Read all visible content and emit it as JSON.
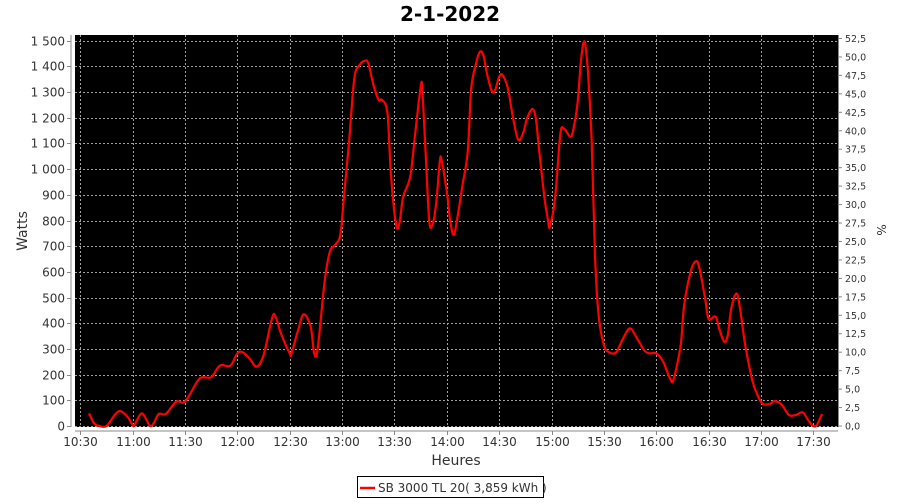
{
  "chart_data": {
    "type": "line",
    "title": "2-1-2022",
    "xlabel": "Heures",
    "ylabel": "Watts",
    "y2label": "%",
    "xlim": [
      "10:30",
      "17:30"
    ],
    "ylim": [
      0,
      1500
    ],
    "y2lim": [
      0,
      52.5
    ],
    "grid": true,
    "legend_position": "bottom",
    "x_ticks": [
      "10:30",
      "11:00",
      "11:30",
      "12:00",
      "12:30",
      "13:00",
      "13:30",
      "14:00",
      "14:30",
      "15:00",
      "15:30",
      "16:00",
      "16:30",
      "17:00",
      "17:30"
    ],
    "y_ticks": [
      {
        "value": 0,
        "label": "0"
      },
      {
        "value": 100,
        "label": "100"
      },
      {
        "value": 200,
        "label": "200"
      },
      {
        "value": 300,
        "label": "300"
      },
      {
        "value": 400,
        "label": "400"
      },
      {
        "value": 500,
        "label": "500"
      },
      {
        "value": 600,
        "label": "600"
      },
      {
        "value": 700,
        "label": "700"
      },
      {
        "value": 800,
        "label": "800"
      },
      {
        "value": 900,
        "label": "900"
      },
      {
        "value": 1000,
        "label": "1 000"
      },
      {
        "value": 1100,
        "label": "1 100"
      },
      {
        "value": 1200,
        "label": "1 200"
      },
      {
        "value": 1300,
        "label": "1 300"
      },
      {
        "value": 1400,
        "label": "1 400"
      },
      {
        "value": 1500,
        "label": "1 500"
      }
    ],
    "y2_ticks": [
      "0,0",
      "2,5",
      "5,0",
      "7,5",
      "10,0",
      "12,5",
      "15,0",
      "17,5",
      "20,0",
      "22,5",
      "25,0",
      "27,5",
      "30,0",
      "32,5",
      "35,0",
      "37,5",
      "40,0",
      "42,5",
      "45,0",
      "47,5",
      "50,0",
      "52,5"
    ],
    "colors": {
      "background": "#000000",
      "grid": "#a0a0a0",
      "series": "#ff0000"
    },
    "series": [
      {
        "name": "SB 3000 TL 20( 3,859 kWh )",
        "color": "#ff0000",
        "x": [
          "10:35",
          "10:38",
          "10:41",
          "10:45",
          "10:50",
          "10:53",
          "10:57",
          "11:00",
          "11:01",
          "11:05",
          "11:08",
          "11:10",
          "11:12",
          "11:15",
          "11:19",
          "11:25",
          "11:30",
          "11:37",
          "11:40",
          "11:45",
          "11:50",
          "11:56",
          "12:00",
          "12:03",
          "12:07",
          "12:11",
          "12:15",
          "12:20",
          "12:22",
          "12:25",
          "12:30",
          "12:31",
          "12:35",
          "12:38",
          "12:42",
          "12:44",
          "12:46",
          "12:50",
          "12:53",
          "12:56",
          "12:59",
          "13:01",
          "13:04",
          "13:07",
          "13:10",
          "13:13",
          "13:15",
          "13:18",
          "13:21",
          "13:23",
          "13:26",
          "13:28",
          "13:31",
          "13:33",
          "13:35",
          "13:39",
          "13:42",
          "13:45",
          "13:46",
          "13:48",
          "13:50",
          "13:52",
          "13:54",
          "13:56",
          "13:57",
          "14:00",
          "14:02",
          "14:04",
          "14:06",
          "14:09",
          "14:12",
          "14:14",
          "14:17",
          "14:19",
          "14:21",
          "14:23",
          "14:26",
          "14:28",
          "14:30",
          "14:32",
          "14:35",
          "14:38",
          "14:41",
          "14:44",
          "14:46",
          "14:49",
          "14:51",
          "14:53",
          "14:56",
          "14:58",
          "14:59",
          "15:02",
          "15:05",
          "15:07",
          "15:11",
          "15:13",
          "15:15",
          "15:17",
          "15:19",
          "15:21",
          "15:23",
          "15:25",
          "15:27",
          "15:30",
          "15:33",
          "15:37",
          "15:41",
          "15:45",
          "15:49",
          "15:53",
          "15:56",
          "16:00",
          "16:04",
          "16:08",
          "16:10",
          "16:14",
          "16:16",
          "16:20",
          "16:23",
          "16:25",
          "16:28",
          "16:30",
          "16:34",
          "16:36",
          "16:39",
          "16:41",
          "16:43",
          "16:46",
          "16:48",
          "16:51",
          "16:55",
          "16:58",
          "17:01",
          "17:05",
          "17:08",
          "17:12",
          "17:16",
          "17:20",
          "17:24",
          "17:27",
          "17:30",
          "17:32",
          "17:35"
        ],
        "y": [
          49,
          10,
          0,
          0,
          45,
          58,
          36,
          4,
          4,
          49,
          23,
          0,
          10,
          47,
          47,
          95,
          95,
          173,
          190,
          190,
          235,
          235,
          283,
          287,
          263,
          231,
          276,
          423,
          423,
          360,
          283,
          283,
          378,
          435,
          387,
          283,
          302,
          562,
          679,
          705,
          744,
          886,
          1107,
          1353,
          1405,
          1422,
          1412,
          1327,
          1269,
          1269,
          1217,
          977,
          782,
          795,
          893,
          970,
          1146,
          1318,
          1308,
          1042,
          795,
          789,
          873,
          1029,
          1035,
          912,
          795,
          744,
          808,
          938,
          1068,
          1314,
          1418,
          1457,
          1444,
          1373,
          1301,
          1314,
          1360,
          1366,
          1314,
          1198,
          1113,
          1146,
          1198,
          1234,
          1198,
          1068,
          886,
          802,
          776,
          886,
          1133,
          1159,
          1126,
          1172,
          1263,
          1431,
          1496,
          1366,
          1107,
          653,
          432,
          315,
          287,
          287,
          341,
          380,
          341,
          296,
          283,
          283,
          250,
          183,
          183,
          315,
          471,
          607,
          642,
          607,
          497,
          417,
          426,
          380,
          328,
          354,
          458,
          516,
          458,
          315,
          179,
          121,
          86,
          86,
          97,
          82,
          43,
          43,
          53,
          23,
          0,
          4,
          47
        ]
      }
    ]
  }
}
